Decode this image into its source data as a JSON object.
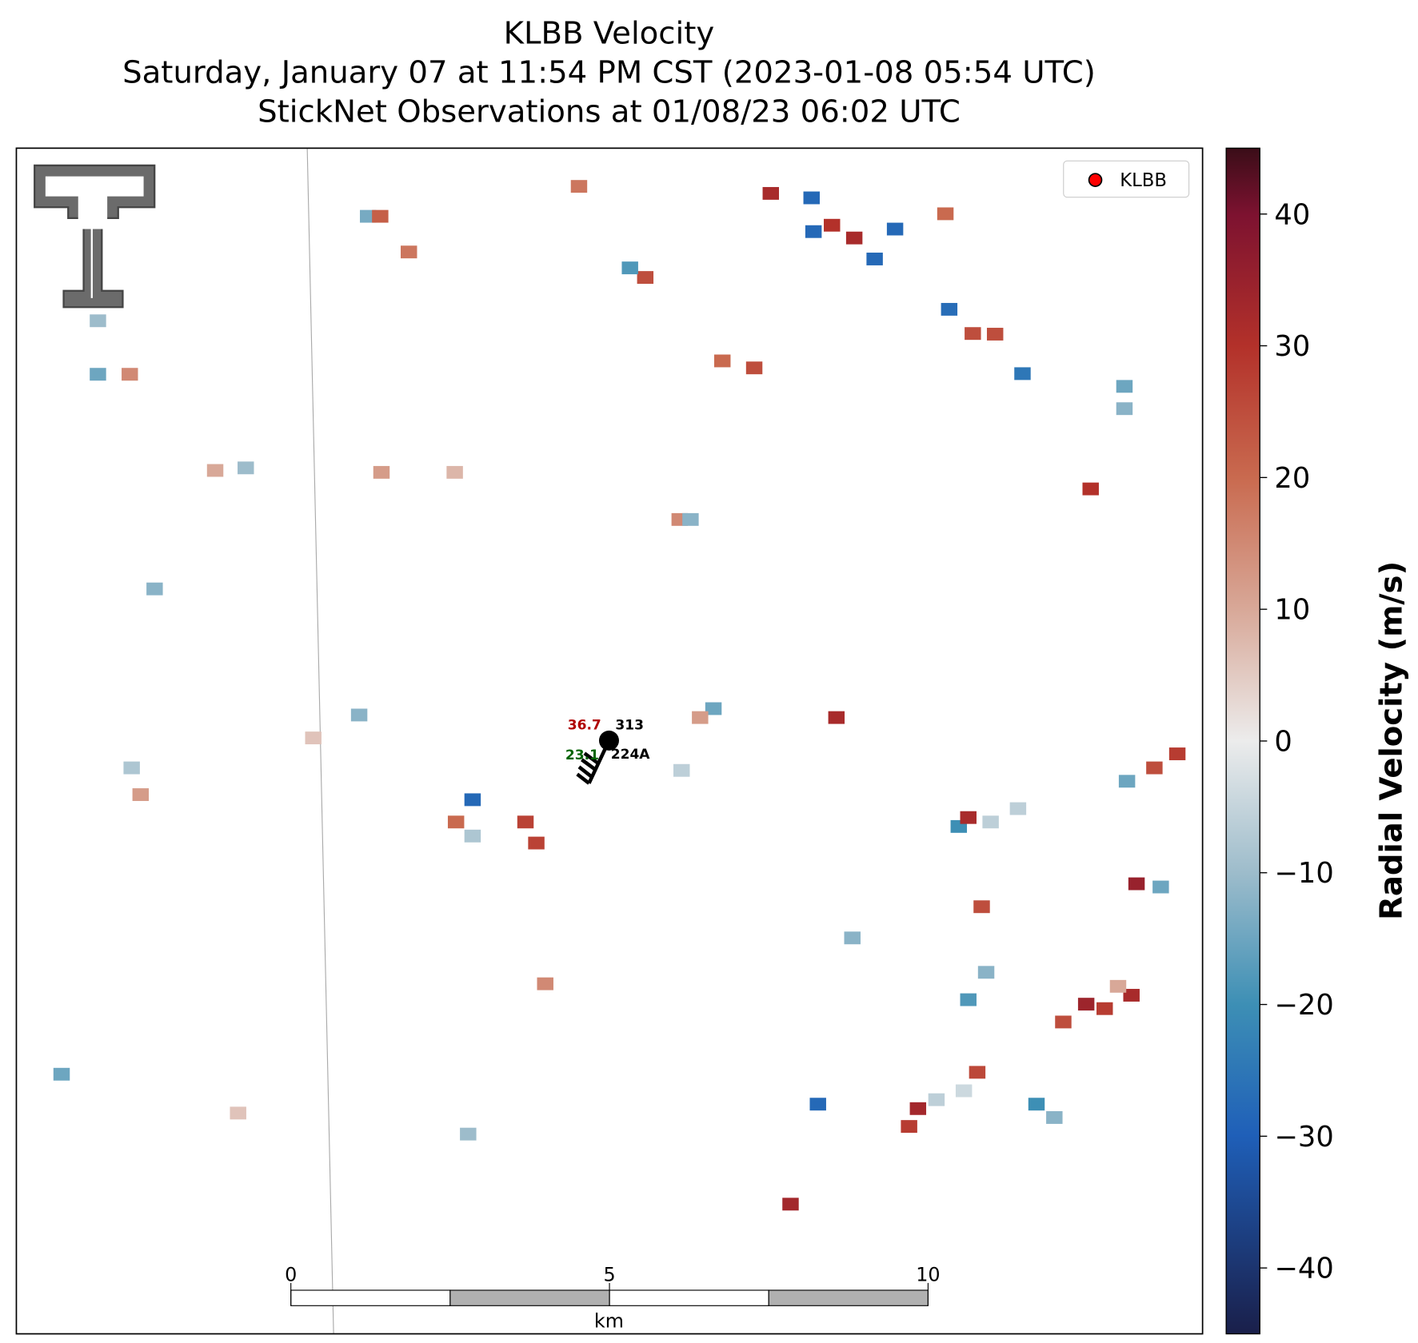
{
  "title": "KLBB Velocity",
  "subtitle": "Saturday, January 07 at 11:54 PM CST (2023-01-08 05:54 UTC)",
  "subtitle2": "StickNet Observations at 01/08/23 06:02 UTC",
  "legend": {
    "label": "KLBB",
    "color": "#ff0000",
    "position": "upper right"
  },
  "station": {
    "temperature": "36.7",
    "direction": "313",
    "dewpoint": "23.1",
    "id": "224A"
  },
  "scale_bar": {
    "ticks": [
      0,
      5,
      10
    ],
    "unit": "km"
  },
  "colorbar": {
    "label": "Radial Velocity (m/s)",
    "lim": [
      -45,
      45
    ],
    "ticks": [
      {
        "value": -40,
        "label": "−40"
      },
      {
        "value": -30,
        "label": "−30"
      },
      {
        "value": -20,
        "label": "−20"
      },
      {
        "value": -10,
        "label": "−10"
      },
      0,
      10,
      20,
      30,
      40
    ]
  },
  "radar_cells": [
    {
      "x_km": 12.48,
      "y_km": 0.78,
      "velocity": -28
    },
    {
      "x_km": 12.8,
      "y_km": 1.21,
      "velocity": 30
    },
    {
      "x_km": 12.51,
      "y_km": 1.31,
      "velocity": -28
    },
    {
      "x_km": 13.15,
      "y_km": 1.41,
      "velocity": 32
    },
    {
      "x_km": 13.47,
      "y_km": 1.74,
      "velocity": -28
    },
    {
      "x_km": 11.84,
      "y_km": 0.71,
      "velocity": 32
    },
    {
      "x_km": 14.64,
      "y_km": 2.53,
      "velocity": -27
    },
    {
      "x_km": 15.01,
      "y_km": 2.91,
      "velocity": 25
    },
    {
      "x_km": 7.16,
      "y_km": 10.23,
      "velocity": -28
    },
    {
      "x_km": 7.99,
      "y_km": 10.58,
      "velocity": 27
    },
    {
      "x_km": 8.16,
      "y_km": 10.91,
      "velocity": 27
    },
    {
      "x_km": 6.9,
      "y_km": 10.58,
      "velocity": 20
    },
    {
      "x_km": 7.16,
      "y_km": 10.8,
      "velocity": -8
    },
    {
      "x_km": 14.15,
      "y_km": 15.08,
      "velocity": 33
    },
    {
      "x_km": 14.01,
      "y_km": 15.36,
      "velocity": 28
    },
    {
      "x_km": 14.44,
      "y_km": 14.94,
      "velocity": -6
    },
    {
      "x_km": 14.87,
      "y_km": 14.8,
      "velocity": -4
    },
    {
      "x_km": 15.08,
      "y_km": 14.51,
      "velocity": 26
    },
    {
      "x_km": 16.79,
      "y_km": 13.44,
      "velocity": 34
    },
    {
      "x_km": 17.08,
      "y_km": 13.51,
      "velocity": 28
    },
    {
      "x_km": 17.5,
      "y_km": 13.3,
      "velocity": 32
    },
    {
      "x_km": 17.29,
      "y_km": 13.16,
      "velocity": 10
    },
    {
      "x_km": 16.43,
      "y_km": 13.72,
      "velocity": 25
    },
    {
      "x_km": 17.86,
      "y_km": 9.73,
      "velocity": 25
    },
    {
      "x_km": 18.22,
      "y_km": 9.51,
      "velocity": 28
    },
    {
      "x_km": 17.43,
      "y_km": 9.94,
      "velocity": -15
    },
    {
      "x_km": 14.79,
      "y_km": 10.65,
      "velocity": -20
    },
    {
      "x_km": 14.94,
      "y_km": 10.51,
      "velocity": 32
    },
    {
      "x_km": 15.29,
      "y_km": 10.58,
      "velocity": -6
    },
    {
      "x_km": 15.72,
      "y_km": 10.37,
      "velocity": -6
    },
    {
      "x_km": 15.22,
      "y_km": 12.94,
      "velocity": -12
    },
    {
      "x_km": 14.94,
      "y_km": 13.37,
      "velocity": -18
    },
    {
      "x_km": 12.87,
      "y_km": 8.94,
      "velocity": 32
    },
    {
      "x_km": 8.3,
      "y_km": 13.12,
      "velocity": 15
    },
    {
      "x_km": 12.15,
      "y_km": 16.58,
      "velocity": 33
    },
    {
      "x_km": 12.58,
      "y_km": 15.01,
      "velocity": -28
    },
    {
      "x_km": 17.58,
      "y_km": 11.55,
      "velocity": 35
    },
    {
      "x_km": 17.96,
      "y_km": 11.6,
      "velocity": -15
    },
    {
      "x_km": 15.15,
      "y_km": 11.91,
      "velocity": 25
    },
    {
      "x_km": 16.86,
      "y_km": 5.35,
      "velocity": 30
    },
    {
      "x_km": 5.52,
      "y_km": 1.07,
      "velocity": -14
    },
    {
      "x_km": 5.71,
      "y_km": 1.07,
      "velocity": 22
    },
    {
      "x_km": 6.16,
      "y_km": 1.63,
      "velocity": 18
    },
    {
      "x_km": 9.87,
      "y_km": 2.03,
      "velocity": 25
    },
    {
      "x_km": 9.63,
      "y_km": 1.88,
      "velocity": -18
    },
    {
      "x_km": 8.83,
      "y_km": 0.6,
      "velocity": 18
    },
    {
      "x_km": 1.28,
      "y_km": 3.55,
      "velocity": -15
    },
    {
      "x_km": 1.78,
      "y_km": 3.55,
      "velocity": 15
    },
    {
      "x_km": 1.28,
      "y_km": 2.71,
      "velocity": -10
    },
    {
      "x_km": 5.73,
      "y_km": 5.09,
      "velocity": 12
    },
    {
      "x_km": 6.88,
      "y_km": 5.09,
      "velocity": 8
    },
    {
      "x_km": 3.12,
      "y_km": 5.06,
      "velocity": 10
    },
    {
      "x_km": 3.6,
      "y_km": 5.02,
      "velocity": -10
    },
    {
      "x_km": 0.71,
      "y_km": 14.54,
      "velocity": -15
    },
    {
      "x_km": 3.48,
      "y_km": 15.15,
      "velocity": 6
    },
    {
      "x_km": 15.79,
      "y_km": 3.54,
      "velocity": -25
    },
    {
      "x_km": 17.39,
      "y_km": 3.74,
      "velocity": -15
    },
    {
      "x_km": 17.39,
      "y_km": 4.09,
      "velocity": -12
    },
    {
      "x_km": 5.38,
      "y_km": 8.9,
      "velocity": -12
    },
    {
      "x_km": 4.66,
      "y_km": 9.26,
      "velocity": 6
    },
    {
      "x_km": 1.81,
      "y_km": 9.73,
      "velocity": -8
    },
    {
      "x_km": 1.95,
      "y_km": 10.15,
      "velocity": 12
    },
    {
      "x_km": 2.17,
      "y_km": 6.92,
      "velocity": -12
    },
    {
      "x_km": 10.94,
      "y_km": 8.8,
      "velocity": -15
    },
    {
      "x_km": 10.73,
      "y_km": 8.94,
      "velocity": 12
    },
    {
      "x_km": 10.44,
      "y_km": 9.77,
      "velocity": -6
    },
    {
      "x_km": 11.58,
      "y_km": 3.45,
      "velocity": 25
    },
    {
      "x_km": 11.08,
      "y_km": 3.34,
      "velocity": 20
    },
    {
      "x_km": 16.29,
      "y_km": 15.22,
      "velocity": -12
    },
    {
      "x_km": 16.01,
      "y_km": 15.01,
      "velocity": -20
    },
    {
      "x_km": 7.09,
      "y_km": 15.48,
      "velocity": -10
    },
    {
      "x_km": 13.12,
      "y_km": 12.4,
      "velocity": -12
    },
    {
      "x_km": 10.41,
      "y_km": 5.83,
      "velocity": 15
    },
    {
      "x_km": 10.58,
      "y_km": 5.83,
      "velocity": -12
    },
    {
      "x_km": 15.36,
      "y_km": 2.92,
      "velocity": 25
    },
    {
      "x_km": 14.58,
      "y_km": 1.03,
      "velocity": 20
    },
    {
      "x_km": 13.79,
      "y_km": 1.27,
      "velocity": -28
    }
  ]
}
